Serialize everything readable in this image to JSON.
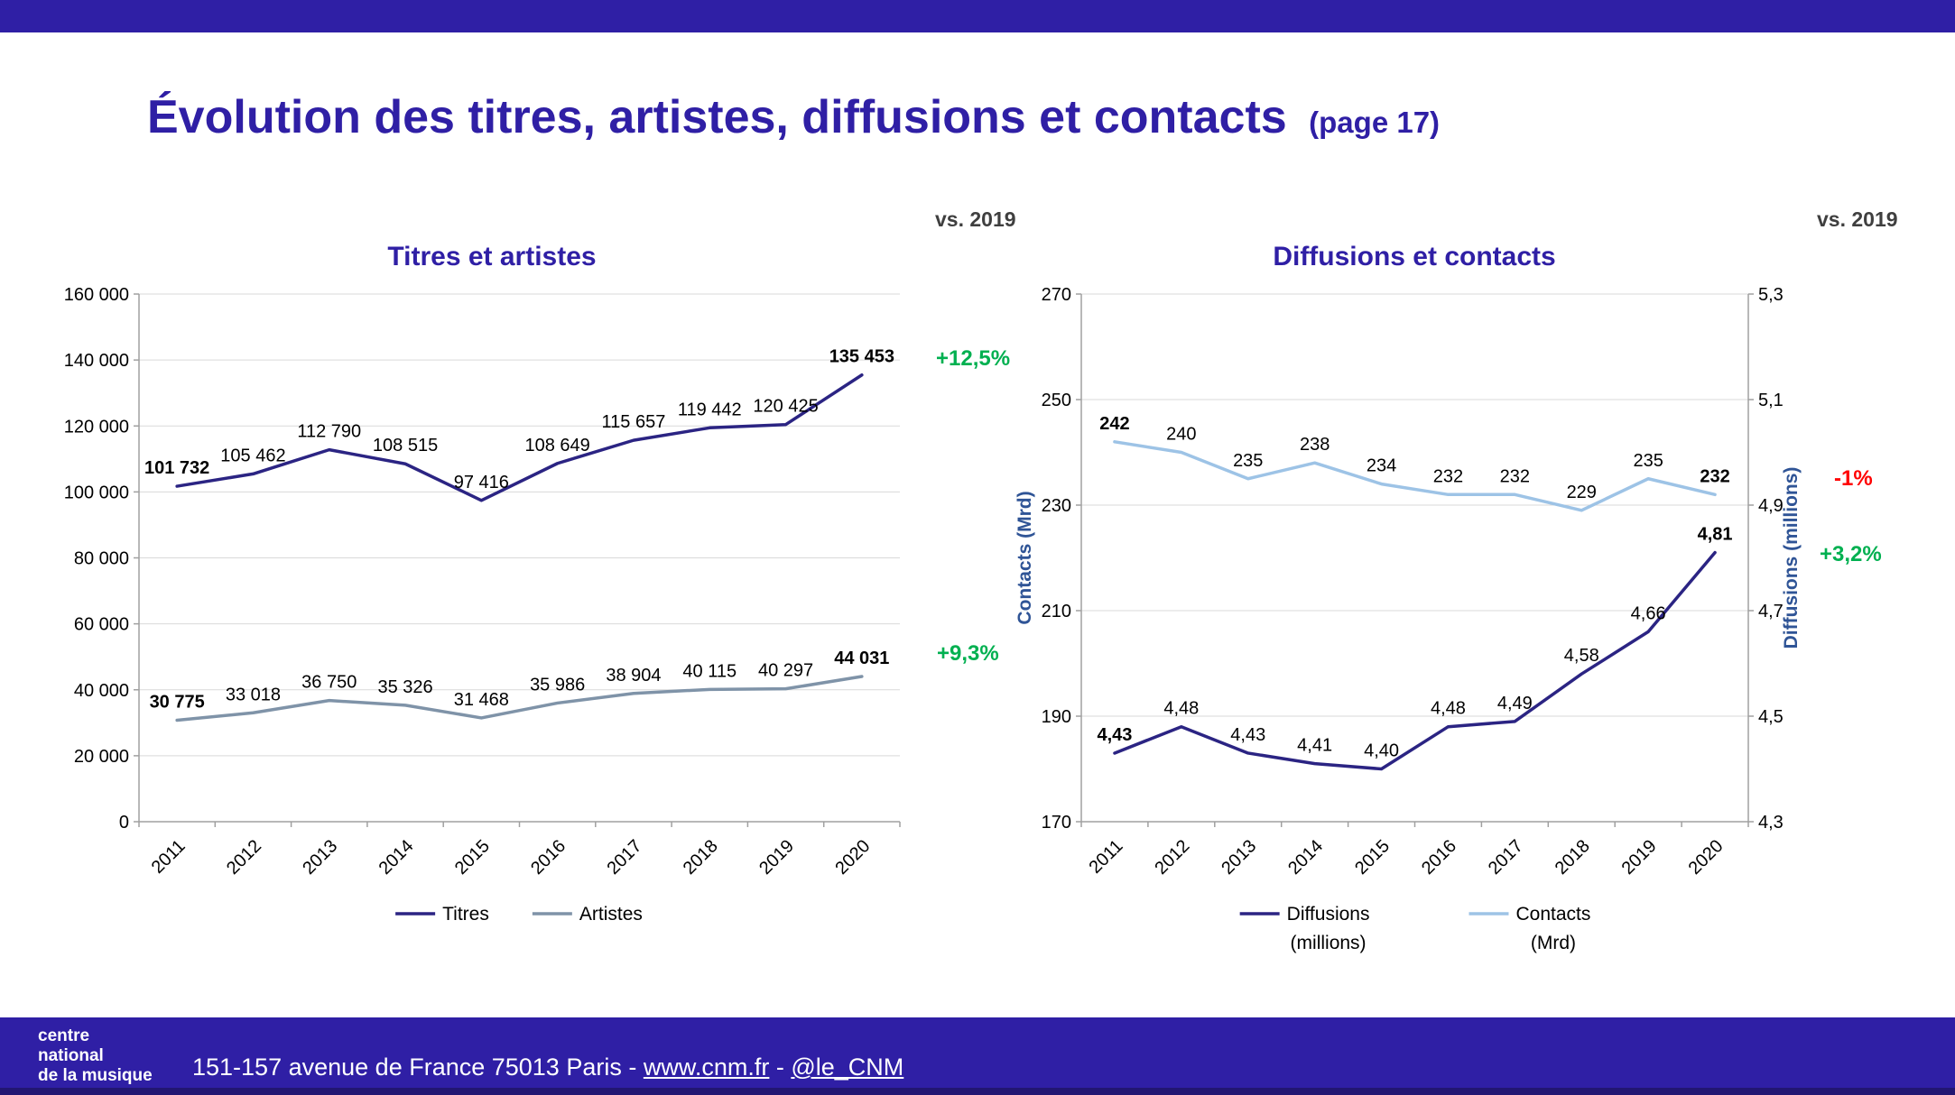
{
  "page": {
    "title": "Évolution des titres, artistes, diffusions et contacts",
    "title_suffix": "(page 17)",
    "vs_2019_left": "vs. 2019",
    "vs_2019_right": "vs. 2019"
  },
  "colors": {
    "brand_purple": "#2F1FA5",
    "footer_edge": "#221672",
    "titres_line": "#2B2483",
    "artistes_line": "#7F93A8",
    "diffusions_line": "#2B2483",
    "contacts_line": "#9DC3E6",
    "positive_green": "#00B050",
    "negative_red": "#FF0000",
    "axis_title_blue": "#2F5496",
    "grid_line": "#D9D9D9",
    "axis_line": "#A0A0A0",
    "vs_label_color": "#3F3F3F"
  },
  "chart_data": [
    {
      "type": "line",
      "title": "Titres et artistes",
      "legend_position": "bottom",
      "grid": "horizontal",
      "categories": [
        "2011",
        "2012",
        "2013",
        "2014",
        "2015",
        "2016",
        "2017",
        "2018",
        "2019",
        "2020"
      ],
      "left_axis": {
        "lim": [
          0,
          160000
        ],
        "ticks": [
          0,
          20000,
          40000,
          60000,
          80000,
          100000,
          120000,
          140000,
          160000
        ],
        "tick_labels": [
          "0",
          "20 000",
          "40 000",
          "60 000",
          "80 000",
          "100 000",
          "120 000",
          "140 000",
          "160 000"
        ]
      },
      "series": [
        {
          "name": "Titres",
          "legend_lines": [
            "Titres"
          ],
          "color": "titres_line",
          "axis": "left",
          "values": [
            101732,
            105462,
            112790,
            108515,
            97416,
            108649,
            115657,
            119442,
            120425,
            135453
          ],
          "labels": [
            "101 732",
            "105 462",
            "112 790",
            "108 515",
            "97 416",
            "108 649",
            "115 657",
            "119 442",
            "120 425",
            "135 453"
          ],
          "bold_label_indices": [
            0,
            9
          ]
        },
        {
          "name": "Artistes",
          "legend_lines": [
            "Artistes"
          ],
          "color": "artistes_line",
          "axis": "left",
          "values": [
            30775,
            33018,
            36750,
            35326,
            31468,
            35986,
            38904,
            40115,
            40297,
            44031
          ],
          "labels": [
            "30 775",
            "33 018",
            "36 750",
            "35 326",
            "31 468",
            "35 986",
            "38 904",
            "40 115",
            "40 297",
            "44 031"
          ],
          "bold_label_indices": [
            0,
            9
          ]
        }
      ],
      "change_vs_2019": {
        "titres": "+12,5%",
        "artistes": "+9,3%"
      }
    },
    {
      "type": "line",
      "title": "Diffusions et contacts",
      "legend_position": "bottom",
      "grid": "horizontal",
      "categories": [
        "2011",
        "2012",
        "2013",
        "2014",
        "2015",
        "2016",
        "2017",
        "2018",
        "2019",
        "2020"
      ],
      "left_axis": {
        "title": "Contacts (Mrd)",
        "lim": [
          170,
          270
        ],
        "ticks": [
          170,
          190,
          210,
          230,
          250,
          270
        ],
        "tick_labels": [
          "170",
          "190",
          "210",
          "230",
          "250",
          "270"
        ]
      },
      "right_axis": {
        "title": "Diffusions (millions)",
        "lim": [
          4.3,
          5.3
        ],
        "ticks": [
          4.3,
          4.5,
          4.7,
          4.9,
          5.1,
          5.3
        ],
        "tick_labels": [
          "4,3",
          "4,5",
          "4,7",
          "4,9",
          "5,1",
          "5,3"
        ]
      },
      "series": [
        {
          "name": "Diffusions (millions)",
          "legend_lines": [
            "Diffusions",
            "(millions)"
          ],
          "color": "diffusions_line",
          "axis": "right",
          "values": [
            4.43,
            4.48,
            4.43,
            4.41,
            4.4,
            4.48,
            4.49,
            4.58,
            4.66,
            4.81
          ],
          "labels": [
            "4,43",
            "4,48",
            "4,43",
            "4,41",
            "4,40",
            "4,48",
            "4,49",
            "4,58",
            "4,66",
            "4,81"
          ],
          "bold_label_indices": [
            0,
            9
          ]
        },
        {
          "name": "Contacts (Mrd)",
          "legend_lines": [
            "Contacts",
            "(Mrd)"
          ],
          "color": "contacts_line",
          "axis": "left",
          "values": [
            242,
            240,
            235,
            238,
            234,
            232,
            232,
            229,
            235,
            232
          ],
          "labels": [
            "242",
            "240",
            "235",
            "238",
            "234",
            "232",
            "232",
            "229",
            "235",
            "232"
          ],
          "bold_label_indices": [
            0,
            9
          ]
        }
      ],
      "change_vs_2019": {
        "contacts": "-1%",
        "diffusions": "+3,2%"
      }
    }
  ],
  "footer": {
    "logo_lines": [
      "centre",
      "national",
      "de la musique"
    ],
    "address_prefix": "151-157 avenue de France 75013 Paris - ",
    "website": "www.cnm.fr",
    "separator": " - ",
    "handle": "@le_CNM"
  }
}
